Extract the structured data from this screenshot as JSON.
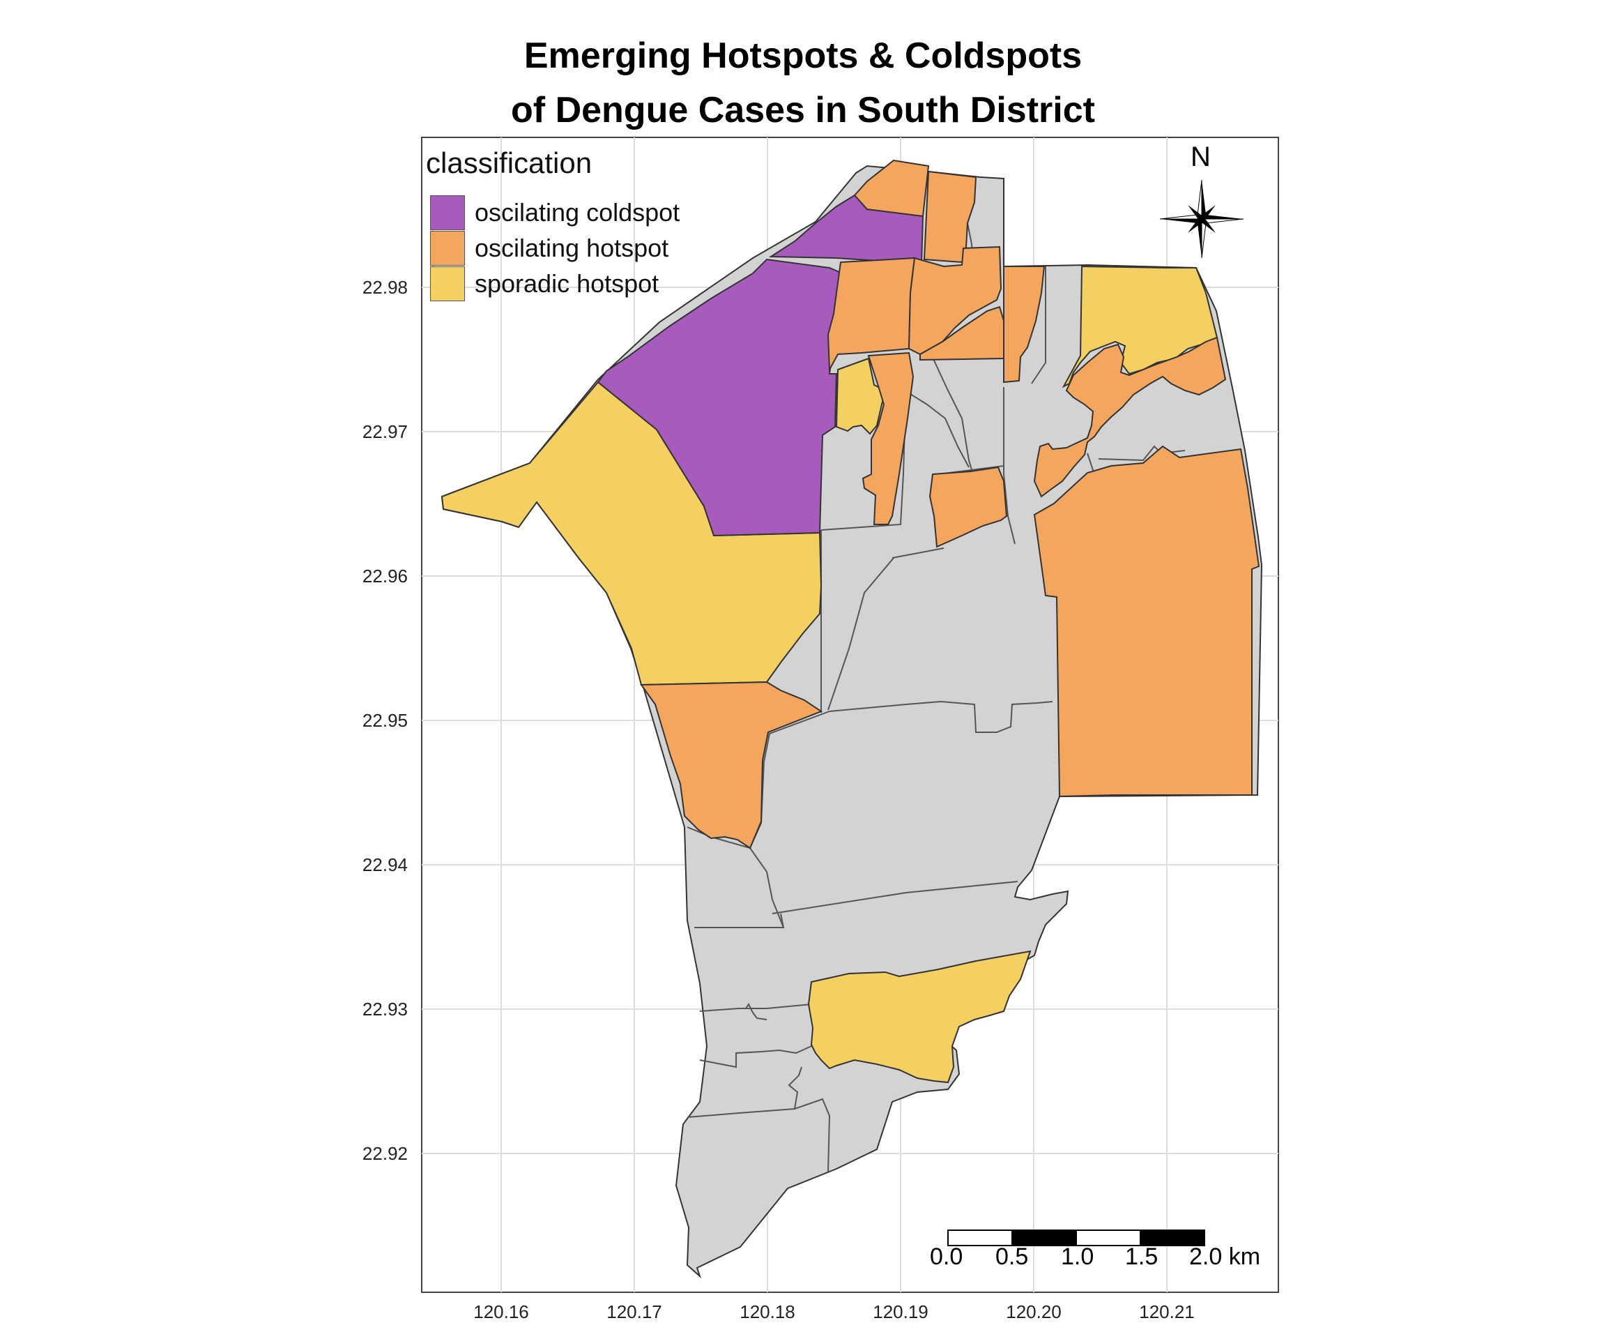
{
  "title_line1": "Emerging Hotspots & Coldspots",
  "title_line2": "of Dengue Cases in South District",
  "legend": {
    "title": "classification",
    "items": [
      {
        "label": "oscilating coldspot",
        "color": "#a65bbd"
      },
      {
        "label": "oscilating hotspot",
        "color": "#f4a65f"
      },
      {
        "label": "sporadic hotspot",
        "color": "#f4cf62"
      }
    ]
  },
  "colors": {
    "background_area": "#d3d3d3",
    "border": "#333333",
    "grid": "#dddddd"
  },
  "axes": {
    "y_ticks": [
      "22.98",
      "22.97",
      "22.96",
      "22.95",
      "22.94",
      "22.93",
      "22.92"
    ],
    "x_ticks": [
      "120.16",
      "120.17",
      "120.18",
      "120.19",
      "120.20",
      "120.21"
    ]
  },
  "north_arrow": {
    "label": "N",
    "icon": "compass-star-icon"
  },
  "scale_bar": {
    "labels": [
      "0.0",
      "0.5",
      "1.0",
      "1.5",
      "2.0 km"
    ]
  }
}
